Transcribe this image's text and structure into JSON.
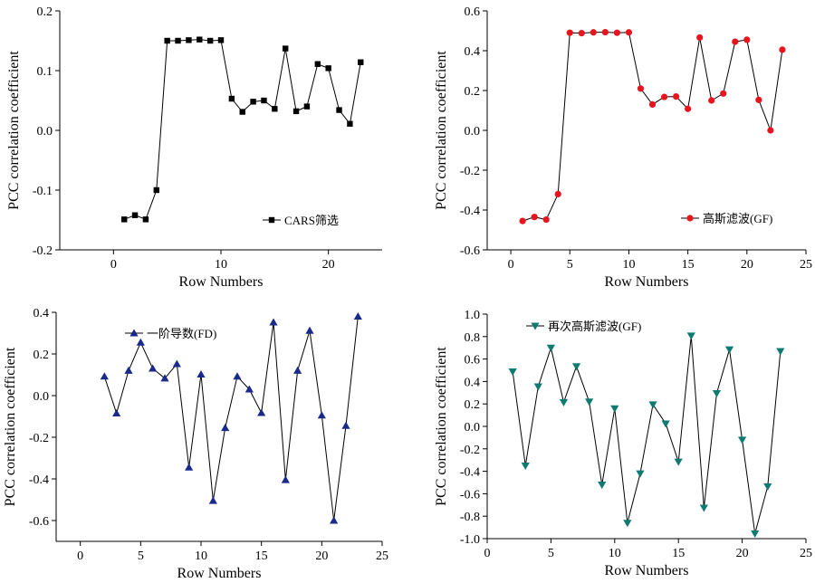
{
  "chart_data": [
    {
      "type": "line",
      "title": "",
      "xlabel": "Row Numbers",
      "ylabel": "PCC correlation coefficient",
      "xlim": [
        -5,
        25
      ],
      "ylim": [
        -0.2,
        0.2
      ],
      "xticks": [
        0,
        10,
        20
      ],
      "xtick_labels": [
        "0",
        "10",
        "20"
      ],
      "yticks": [
        -0.2,
        -0.1,
        0.0,
        0.1,
        0.2
      ],
      "ytick_labels": [
        "-0.2",
        "-0.1",
        "0.0",
        "0.1",
        "0.2"
      ],
      "grid": false,
      "legend_position": "lower-right",
      "series": [
        {
          "name": "CARS筛选",
          "marker": "square",
          "color": "#000000",
          "line_color": "#000000",
          "x": [
            1,
            2,
            3,
            4,
            5,
            6,
            7,
            8,
            9,
            10,
            11,
            12,
            13,
            14,
            15,
            16,
            17,
            18,
            19,
            20,
            21,
            22,
            23
          ],
          "values": [
            -0.149,
            -0.142,
            -0.149,
            -0.1,
            0.15,
            0.15,
            0.151,
            0.152,
            0.15,
            0.151,
            0.053,
            0.031,
            0.048,
            0.05,
            0.036,
            0.137,
            0.032,
            0.04,
            0.111,
            0.104,
            0.034,
            0.011,
            0.114
          ]
        }
      ]
    },
    {
      "type": "line",
      "title": "",
      "xlabel": "Row Numbers",
      "ylabel": "PCC correlation coefficient",
      "xlim": [
        -2,
        25
      ],
      "ylim": [
        -0.6,
        0.6
      ],
      "xticks": [
        0,
        5,
        10,
        15,
        20,
        25
      ],
      "xtick_labels": [
        "0",
        "5",
        "10",
        "15",
        "20",
        "25"
      ],
      "yticks": [
        -0.6,
        -0.4,
        -0.2,
        0.0,
        0.2,
        0.4,
        0.6
      ],
      "ytick_labels": [
        "-0.6",
        "-0.4",
        "-0.2",
        "0.0",
        "0.2",
        "0.4",
        "0.6"
      ],
      "grid": false,
      "legend_position": "lower-right",
      "series": [
        {
          "name": "高斯滤波(GF)",
          "marker": "circle",
          "color": "#e8141e",
          "line_color": "#000000",
          "x": [
            1,
            2,
            3,
            4,
            5,
            6,
            7,
            8,
            9,
            10,
            11,
            12,
            13,
            14,
            15,
            16,
            17,
            18,
            19,
            20,
            21,
            22,
            23
          ],
          "values": [
            -0.455,
            -0.435,
            -0.448,
            -0.32,
            0.49,
            0.488,
            0.492,
            0.493,
            0.49,
            0.492,
            0.21,
            0.13,
            0.168,
            0.17,
            0.108,
            0.466,
            0.15,
            0.185,
            0.445,
            0.455,
            0.153,
            0.0,
            0.405
          ]
        }
      ]
    },
    {
      "type": "line",
      "title": "",
      "xlabel": "Row Numbers",
      "ylabel": "PCC correlation coefficient",
      "xlim": [
        -2,
        25
      ],
      "ylim": [
        -0.7,
        0.4
      ],
      "xticks": [
        0,
        5,
        10,
        15,
        20,
        25
      ],
      "xtick_labels": [
        "0",
        "5",
        "10",
        "15",
        "20",
        "25"
      ],
      "yticks": [
        -0.6,
        -0.4,
        -0.2,
        0.0,
        0.2,
        0.4
      ],
      "ytick_labels": [
        "-0.6",
        "-0.4",
        "-0.2",
        "0.0",
        "0.2",
        "0.4"
      ],
      "grid": false,
      "legend_position": "top-left",
      "series": [
        {
          "name": "一阶导数(FD)",
          "marker": "triangle-up",
          "color": "#1a2a8a",
          "line_color": "#000000",
          "x": [
            2,
            3,
            4,
            5,
            6,
            7,
            8,
            9,
            10,
            11,
            12,
            13,
            14,
            15,
            16,
            17,
            18,
            19,
            20,
            21,
            22,
            23
          ],
          "values": [
            0.092,
            -0.085,
            0.12,
            0.255,
            0.13,
            0.083,
            0.152,
            -0.345,
            0.102,
            -0.505,
            -0.155,
            0.092,
            0.03,
            -0.083,
            0.352,
            -0.405,
            0.12,
            0.312,
            -0.095,
            -0.6,
            -0.145,
            0.38
          ]
        }
      ]
    },
    {
      "type": "line",
      "title": "",
      "xlabel": "Row Numbers",
      "ylabel": "PCC correlation coefficient",
      "xlim": [
        0,
        25
      ],
      "ylim": [
        -1.0,
        1.0
      ],
      "xticks": [
        0,
        5,
        10,
        15,
        20,
        25
      ],
      "xtick_labels": [
        "0",
        "5",
        "10",
        "15",
        "20",
        "25"
      ],
      "yticks": [
        -1.0,
        -0.8,
        -0.6,
        -0.4,
        -0.2,
        0.0,
        0.2,
        0.4,
        0.6,
        0.8,
        1.0
      ],
      "ytick_labels": [
        "-1.0",
        "-0.8",
        "-0.6",
        "-0.4",
        "-0.2",
        "0.0",
        "0.2",
        "0.4",
        "0.6",
        "0.8",
        "1.0"
      ],
      "grid": false,
      "legend_position": "top-left",
      "series": [
        {
          "name": "再次高斯滤波(GF)",
          "marker": "triangle-down",
          "color": "#0f7a72",
          "line_color": "#000000",
          "x": [
            2,
            3,
            4,
            5,
            6,
            7,
            8,
            9,
            10,
            11,
            12,
            13,
            14,
            15,
            16,
            17,
            18,
            19,
            20,
            21,
            22,
            23
          ],
          "values": [
            0.488,
            -0.35,
            0.355,
            0.7,
            0.215,
            0.535,
            0.22,
            -0.52,
            0.16,
            -0.86,
            -0.42,
            0.195,
            0.025,
            -0.315,
            0.808,
            -0.725,
            0.295,
            0.685,
            -0.12,
            -0.955,
            -0.535,
            0.67
          ]
        }
      ]
    }
  ]
}
